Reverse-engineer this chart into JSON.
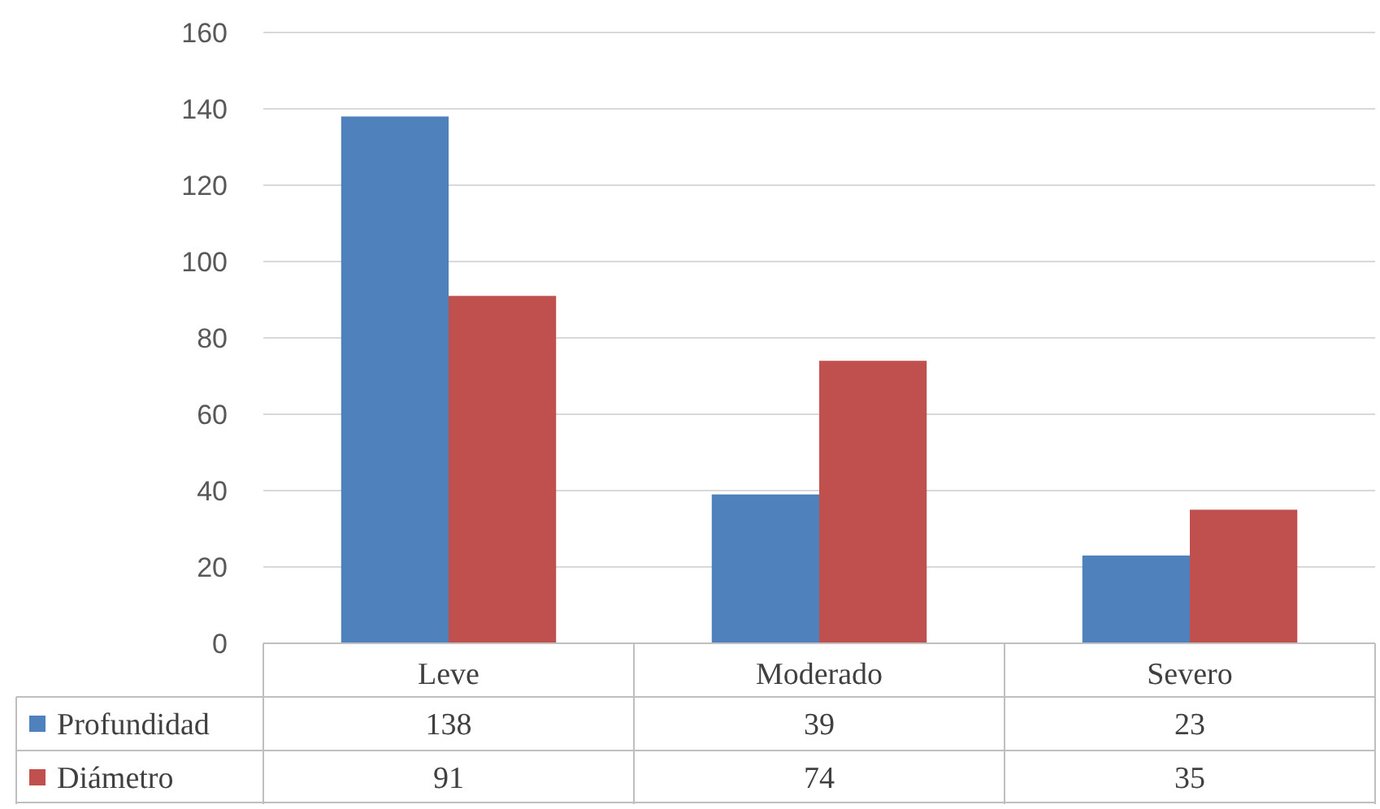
{
  "chart_data": {
    "type": "bar",
    "categories": [
      "Leve",
      "Moderado",
      "Severo"
    ],
    "series": [
      {
        "name": "Profundidad",
        "color": "#4f81bd",
        "values": [
          138,
          39,
          23
        ]
      },
      {
        "name": "Diámetro",
        "color": "#c0504d",
        "values": [
          91,
          74,
          35
        ]
      }
    ],
    "ylim": [
      0,
      160
    ],
    "yticks": [
      0,
      20,
      40,
      60,
      80,
      100,
      120,
      140,
      160
    ],
    "grid": "y",
    "data_labels": true,
    "legend": "bottom"
  }
}
